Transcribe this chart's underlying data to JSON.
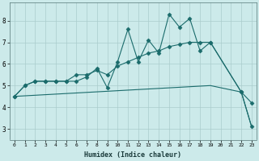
{
  "xlabel": "Humidex (Indice chaleur)",
  "bg_color": "#cceaea",
  "grid_color": "#aacccc",
  "line_color": "#1a6b6b",
  "xlim": [
    -0.5,
    23.5
  ],
  "ylim": [
    2.5,
    8.85
  ],
  "xticks": [
    0,
    1,
    2,
    3,
    4,
    5,
    6,
    7,
    8,
    9,
    10,
    11,
    12,
    13,
    14,
    15,
    16,
    17,
    18,
    19,
    20,
    21,
    22,
    23
  ],
  "yticks": [
    3,
    4,
    5,
    6,
    7,
    8
  ],
  "line1_x": [
    0,
    1,
    2,
    3,
    4,
    5,
    6,
    7,
    8,
    9,
    10,
    11,
    12,
    13,
    14,
    15,
    16,
    17,
    18,
    19,
    22,
    23
  ],
  "line1_y": [
    4.5,
    5.0,
    5.2,
    5.2,
    5.2,
    5.2,
    5.2,
    5.4,
    5.8,
    4.9,
    6.1,
    7.6,
    6.1,
    7.1,
    6.5,
    8.3,
    7.7,
    8.1,
    6.6,
    7.0,
    4.7,
    4.2
  ],
  "line2_x": [
    0,
    1,
    2,
    3,
    4,
    5,
    6,
    7,
    8,
    9,
    10,
    11,
    12,
    13,
    14,
    15,
    16,
    17,
    18,
    19,
    22,
    23
  ],
  "line2_y": [
    4.5,
    5.0,
    5.2,
    5.2,
    5.2,
    5.2,
    5.5,
    5.5,
    5.7,
    5.5,
    5.9,
    6.1,
    6.3,
    6.5,
    6.6,
    6.8,
    6.9,
    7.0,
    7.0,
    7.0,
    4.7,
    3.1
  ],
  "line3_x": [
    0,
    19,
    22,
    23
  ],
  "line3_y": [
    4.5,
    5.0,
    4.7,
    3.1
  ],
  "marker": "D",
  "marker_size": 2.5,
  "linewidth": 0.8
}
